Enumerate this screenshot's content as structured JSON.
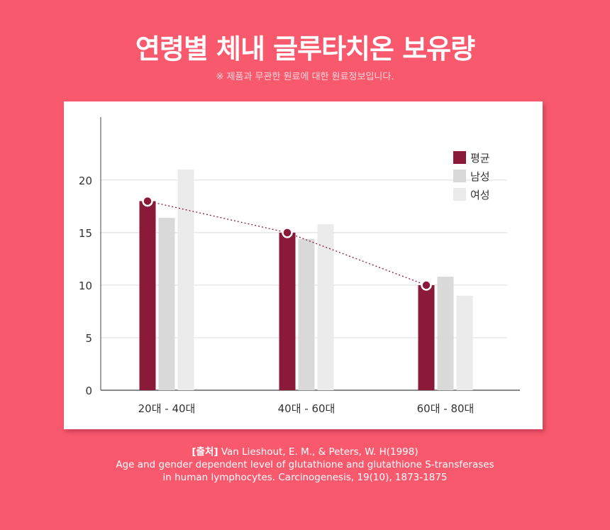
{
  "header": {
    "title": "연령별 체내 글루타치온 보유량",
    "subtitle": "※ 제품과 무관한 원료에 대한 원료정보입니다."
  },
  "chart_data": {
    "type": "bar",
    "categories": [
      "20대 - 40대",
      "40대 - 60대",
      "60대 - 80대"
    ],
    "series": [
      {
        "name": "평균",
        "values": [
          18,
          15,
          10
        ],
        "color": "#8b1a3a"
      },
      {
        "name": "남성",
        "values": [
          16.4,
          14.4,
          10.8
        ],
        "color": "#d9d9d9"
      },
      {
        "name": "여성",
        "values": [
          21,
          15.8,
          9
        ],
        "color": "#ebebeb"
      }
    ],
    "overlay_line": {
      "series": "평균",
      "color": "#8b1a3a",
      "style": "dotted",
      "markers": true
    },
    "yticks": [
      0,
      5,
      10,
      15,
      20
    ],
    "ylim": [
      0,
      26
    ],
    "grid": true,
    "legend": "top-right"
  },
  "source": {
    "label": "[출처]",
    "line1": "Van Lieshout, E. M., & Peters, W. H(1998)",
    "line2": "Age and gender dependent level of glutathione and glutathione S-transferases",
    "line3": "in human lymphocytes. Carcinogenesis, 19(10), 1873-1875"
  }
}
